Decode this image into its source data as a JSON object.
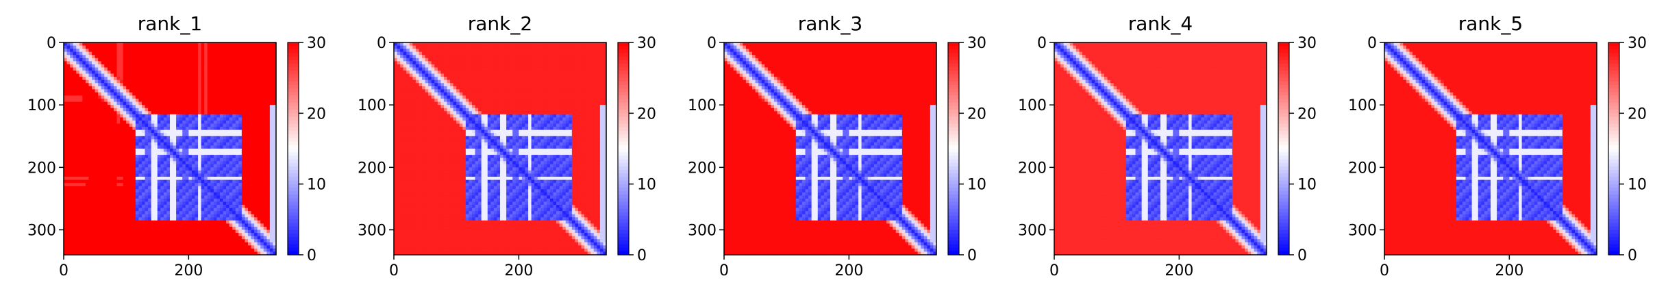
{
  "colors": {
    "background": "#ffffff",
    "axis": "#000000",
    "cmap_low": "#0000ff",
    "cmap_mid": "#ffffff",
    "cmap_high": "#ff0000"
  },
  "chart_data": [
    {
      "type": "heatmap",
      "title": "rank_1",
      "xlim": [
        0,
        340
      ],
      "ylim": [
        340,
        0
      ],
      "x_ticks": [
        0,
        200
      ],
      "y_ticks": [
        0,
        100,
        200,
        300
      ],
      "colorbar": {
        "range": [
          0,
          30
        ],
        "ticks": [
          0,
          10,
          20,
          30
        ],
        "cmap": "bwr"
      },
      "data_description": "Predicted aligned error matrix (approx.): low near diagonal and in domain block ~115-285; high elsewhere"
    },
    {
      "type": "heatmap",
      "title": "rank_2",
      "xlim": [
        0,
        340
      ],
      "ylim": [
        340,
        0
      ],
      "x_ticks": [
        0,
        200
      ],
      "y_ticks": [
        0,
        100,
        200,
        300
      ],
      "colorbar": {
        "range": [
          0,
          30
        ],
        "ticks": [
          0,
          10,
          20,
          30
        ],
        "cmap": "bwr"
      },
      "data_description": "Predicted aligned error matrix (approx.)"
    },
    {
      "type": "heatmap",
      "title": "rank_3",
      "xlim": [
        0,
        340
      ],
      "ylim": [
        340,
        0
      ],
      "x_ticks": [
        0,
        200
      ],
      "y_ticks": [
        0,
        100,
        200,
        300
      ],
      "colorbar": {
        "range": [
          0,
          30
        ],
        "ticks": [
          0,
          10,
          20,
          30
        ],
        "cmap": "bwr"
      },
      "data_description": "Predicted aligned error matrix (approx.)"
    },
    {
      "type": "heatmap",
      "title": "rank_4",
      "xlim": [
        0,
        340
      ],
      "ylim": [
        340,
        0
      ],
      "x_ticks": [
        0,
        200
      ],
      "y_ticks": [
        0,
        100,
        200,
        300
      ],
      "colorbar": {
        "range": [
          0,
          30
        ],
        "ticks": [
          0,
          10,
          20,
          30
        ],
        "cmap": "bwr"
      },
      "data_description": "Predicted aligned error matrix (approx.)"
    },
    {
      "type": "heatmap",
      "title": "rank_5",
      "xlim": [
        0,
        340
      ],
      "ylim": [
        340,
        0
      ],
      "x_ticks": [
        0,
        200
      ],
      "y_ticks": [
        0,
        100,
        200,
        300
      ],
      "colorbar": {
        "range": [
          0,
          30
        ],
        "ticks": [
          0,
          10,
          20,
          30
        ],
        "cmap": "bwr"
      },
      "data_description": "Predicted aligned error matrix (approx.)"
    }
  ]
}
